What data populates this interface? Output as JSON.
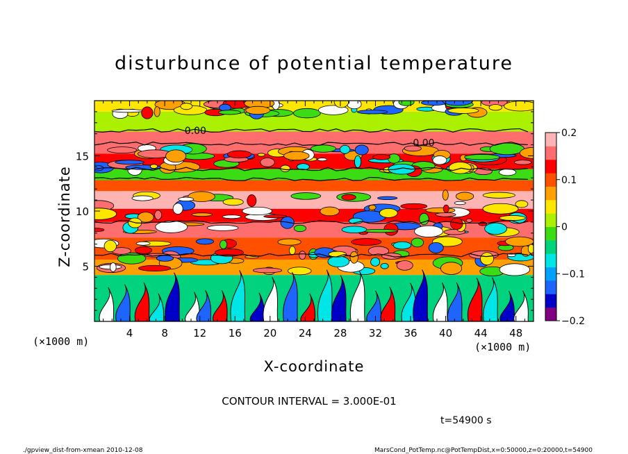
{
  "chart_data": {
    "type": "heatmap",
    "title": "disturbunce of potential temperature",
    "xlabel": "X-coordinate",
    "ylabel": "Z-coordinate",
    "x_unit_left": "(×1000 m)",
    "x_unit_right": "(×1000 m)",
    "x_ticks": [
      "4",
      "8",
      "12",
      "16",
      "20",
      "24",
      "28",
      "32",
      "36",
      "40",
      "44",
      "48"
    ],
    "y_ticks": [
      "5",
      "10",
      "15"
    ],
    "xlim": [
      0,
      50
    ],
    "ylim": [
      0,
      20
    ],
    "colorbar": {
      "ticks": [
        "0.2",
        "0.1",
        "0",
        "−0.1",
        "−0.2"
      ],
      "range": [
        -0.2,
        0.2
      ],
      "colors": [
        "#800080",
        "#0000c8",
        "#1e64ff",
        "#00a0ff",
        "#00e6e6",
        "#00d27d",
        "#3cdc14",
        "#aaf000",
        "#ffe600",
        "#ffa000",
        "#ff5000",
        "#ff0000",
        "#ff6e6e",
        "#ffb4b4"
      ]
    },
    "bands": [
      {
        "z_top": 20.0,
        "z_bottom": 19.0,
        "value": 0.05
      },
      {
        "z_top": 19.0,
        "z_bottom": 17.2,
        "value": 0.0
      },
      {
        "z_top": 17.2,
        "z_bottom": 15.2,
        "value": 0.16
      },
      {
        "z_top": 15.2,
        "z_bottom": 13.8,
        "value": 0.12
      },
      {
        "z_top": 13.8,
        "z_bottom": 12.8,
        "value": -0.02
      },
      {
        "z_top": 12.8,
        "z_bottom": 11.8,
        "value": 0.1
      },
      {
        "z_top": 11.8,
        "z_bottom": 10.2,
        "value": 0.18
      },
      {
        "z_top": 10.2,
        "z_bottom": 9.0,
        "value": 0.14
      },
      {
        "z_top": 9.0,
        "z_bottom": 7.6,
        "value": 0.17
      },
      {
        "z_top": 7.6,
        "z_bottom": 5.6,
        "value": 0.1
      },
      {
        "z_top": 5.6,
        "z_bottom": 4.2,
        "value": 0.08
      },
      {
        "z_top": 4.2,
        "z_bottom": 0.0,
        "value": -0.05
      }
    ],
    "contour_labels": [
      {
        "x": 11.5,
        "z": 17.3,
        "text": "0.00"
      },
      {
        "x": 37.5,
        "z": 16.2,
        "text": "0.00"
      }
    ]
  },
  "contour_interval": "CONTOUR INTERVAL = 3.000E-01",
  "time": "t=54900 s",
  "footer_left": "./gpview_dist-from-xmean  2010-12-08",
  "footer_right": "MarsCond_PotTemp.nc@PotTempDist,x=0:50000,z=0:20000,t=54900"
}
